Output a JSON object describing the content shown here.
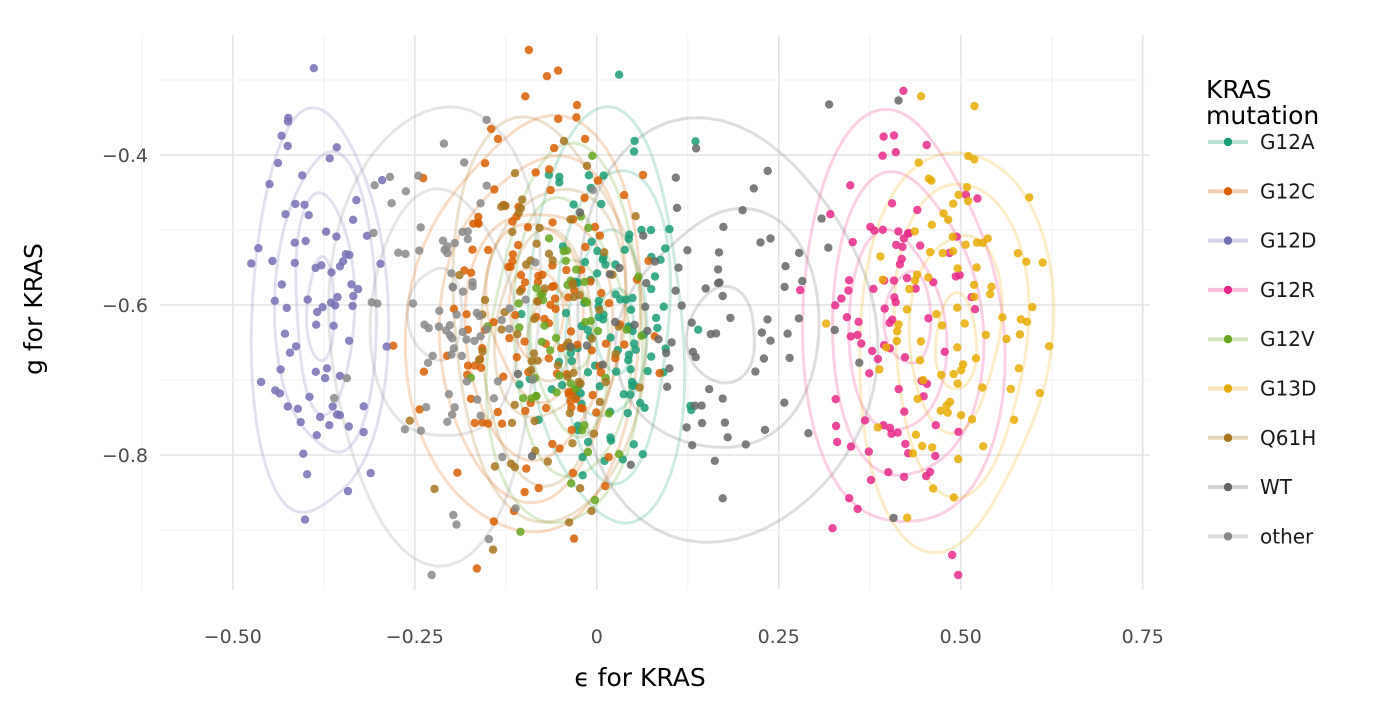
{
  "chart_data": {
    "type": "scatter",
    "xlabel": "ϵ for KRAS",
    "ylabel": "g for KRAS",
    "xlim": [
      -0.6,
      0.76
    ],
    "ylim": [
      -0.98,
      -0.24
    ],
    "x_ticks": [
      -0.5,
      -0.25,
      0,
      0.25,
      0.5,
      0.75
    ],
    "x_tick_labels": [
      "−0.50",
      "−0.25",
      "0",
      "0.25",
      "0.50",
      "0.75"
    ],
    "y_ticks": [
      -0.4,
      -0.6,
      -0.8
    ],
    "y_tick_labels": [
      "−0.4",
      "−0.6",
      "−0.8"
    ],
    "grid": true,
    "overlay": "density contours per series",
    "legend": {
      "title": "KRAS\nmutation",
      "title_lines": [
        "KRAS",
        "mutation"
      ],
      "position": "right"
    },
    "series": [
      {
        "name": "G12A",
        "color": "#1b9e77",
        "center": [
          0.02,
          -0.62
        ],
        "spread": [
          0.05,
          0.12
        ],
        "n": 110,
        "seed": 11,
        "contour_levels": 4
      },
      {
        "name": "G12C",
        "color": "#d95f02",
        "center": [
          -0.09,
          -0.62
        ],
        "spread": [
          0.07,
          0.13
        ],
        "n": 140,
        "seed": 23,
        "contour_levels": 5
      },
      {
        "name": "G12D",
        "color": "#7570b3",
        "center": [
          -0.38,
          -0.6
        ],
        "spread": [
          0.04,
          0.13
        ],
        "n": 80,
        "seed": 37,
        "contour_levels": 4
      },
      {
        "name": "G12R",
        "color": "#e7298a",
        "center": [
          0.42,
          -0.63
        ],
        "spread": [
          0.06,
          0.13
        ],
        "n": 90,
        "seed": 41,
        "contour_levels": 4
      },
      {
        "name": "G12V",
        "color": "#66a61e",
        "center": [
          -0.04,
          -0.64
        ],
        "spread": [
          0.05,
          0.11
        ],
        "n": 50,
        "seed": 53,
        "contour_levels": 4
      },
      {
        "name": "G13D",
        "color": "#e6ab02",
        "center": [
          0.49,
          -0.64
        ],
        "spread": [
          0.06,
          0.12
        ],
        "n": 90,
        "seed": 67,
        "contour_levels": 4
      },
      {
        "name": "Q61H",
        "color": "#a6761d",
        "center": [
          -0.07,
          -0.63
        ],
        "spread": [
          0.06,
          0.12
        ],
        "n": 70,
        "seed": 79,
        "contour_levels": 4
      },
      {
        "name": "WT",
        "color": "#666666",
        "center": [
          0.17,
          -0.63
        ],
        "spread": [
          0.1,
          0.12
        ],
        "n": 80,
        "seed": 83,
        "contour_levels": 3
      },
      {
        "name": "other",
        "color": "#888888",
        "center": [
          -0.22,
          -0.62
        ],
        "spread": [
          0.07,
          0.13
        ],
        "n": 80,
        "seed": 97,
        "contour_levels": 3
      }
    ]
  }
}
